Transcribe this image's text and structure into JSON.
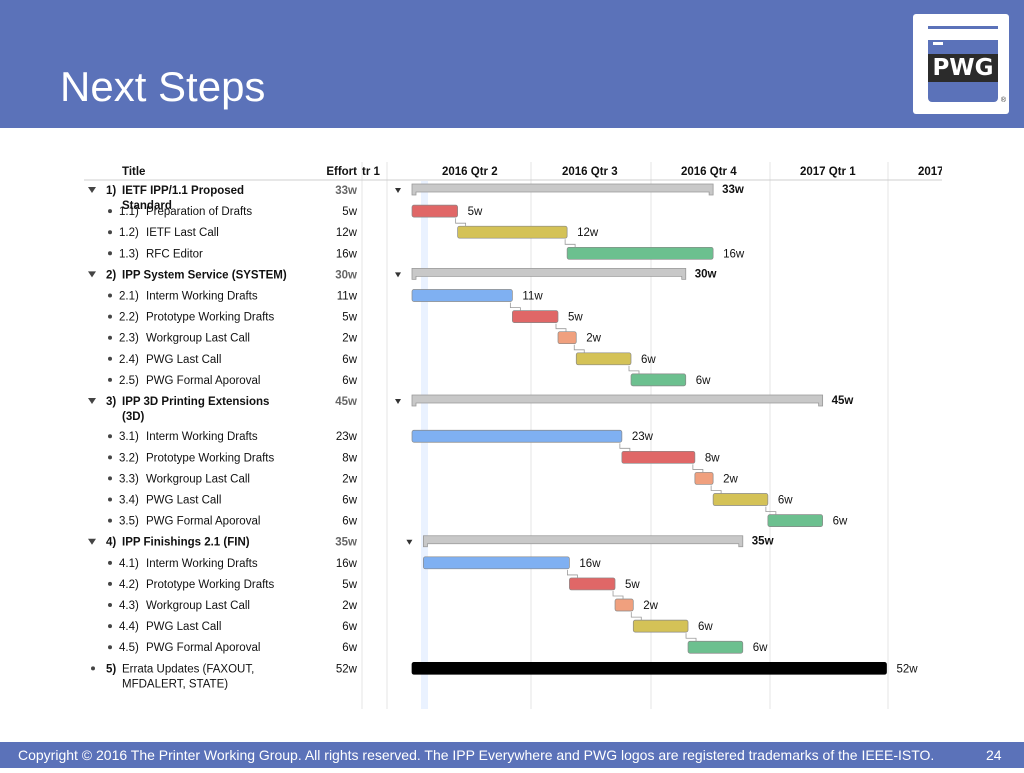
{
  "slide": {
    "title": "Next Steps",
    "logo_text": "PWG",
    "logo_mark": "®",
    "copyright": "Copyright © 2016 The Printer Working Group. All rights reserved. The IPP Everywhere and PWG logos are registered trademarks of the IEEE-ISTO.",
    "page_number": "24"
  },
  "colors": {
    "header": "#5b72b9",
    "summary": "#c8c8c8",
    "blue": "#7fb0f2",
    "red": "#e06767",
    "yellow": "#d4c257",
    "green": "#6cc08f",
    "orange": "#f0a07e",
    "black": "#000000"
  },
  "chart_data": {
    "type": "gantt",
    "columns": {
      "title": "Title",
      "effort": "Effort"
    },
    "quarters": [
      "tr 1",
      "2016 Qtr 2",
      "2016 Qtr 3",
      "2016 Qtr 4",
      "2017 Qtr 1",
      "2017"
    ],
    "tasks": [
      {
        "num": "1)",
        "name": [
          "IETF IPP/1.1 Proposed",
          "Standard"
        ],
        "effort": "33w",
        "summary": true,
        "start": 0,
        "weeks": 33,
        "color": "summary"
      },
      {
        "num": "1.1)",
        "name": [
          "Preparation of Drafts"
        ],
        "effort": "5w",
        "summary": false,
        "start": 0,
        "weeks": 5,
        "color": "red"
      },
      {
        "num": "1.2)",
        "name": [
          "IETF Last Call"
        ],
        "effort": "12w",
        "summary": false,
        "start": 5,
        "weeks": 12,
        "color": "yellow"
      },
      {
        "num": "1.3)",
        "name": [
          "RFC Editor"
        ],
        "effort": "16w",
        "summary": false,
        "start": 17,
        "weeks": 16,
        "color": "green"
      },
      {
        "num": "2)",
        "name": [
          "IPP System Service (SYSTEM)"
        ],
        "effort": "30w",
        "summary": true,
        "start": 0,
        "weeks": 30,
        "color": "summary"
      },
      {
        "num": "2.1)",
        "name": [
          "Interm Working Drafts"
        ],
        "effort": "11w",
        "summary": false,
        "start": 0,
        "weeks": 11,
        "color": "blue"
      },
      {
        "num": "2.2)",
        "name": [
          "Prototype Working Drafts"
        ],
        "effort": "5w",
        "summary": false,
        "start": 11,
        "weeks": 5,
        "color": "red"
      },
      {
        "num": "2.3)",
        "name": [
          "Workgroup Last Call"
        ],
        "effort": "2w",
        "summary": false,
        "start": 16,
        "weeks": 2,
        "color": "orange"
      },
      {
        "num": "2.4)",
        "name": [
          "PWG Last Call"
        ],
        "effort": "6w",
        "summary": false,
        "start": 18,
        "weeks": 6,
        "color": "yellow"
      },
      {
        "num": "2.5)",
        "name": [
          "PWG Formal Aporoval"
        ],
        "effort": "6w",
        "summary": false,
        "start": 24,
        "weeks": 6,
        "color": "green"
      },
      {
        "num": "3)",
        "name": [
          "IPP 3D Printing Extensions",
          "(3D)"
        ],
        "effort": "45w",
        "summary": true,
        "start": 0,
        "weeks": 45,
        "color": "summary"
      },
      {
        "num": "3.1)",
        "name": [
          "Interm Working Drafts"
        ],
        "effort": "23w",
        "summary": false,
        "start": 0,
        "weeks": 23,
        "color": "blue"
      },
      {
        "num": "3.2)",
        "name": [
          "Prototype Working Drafts"
        ],
        "effort": "8w",
        "summary": false,
        "start": 23,
        "weeks": 8,
        "color": "red"
      },
      {
        "num": "3.3)",
        "name": [
          "Workgroup Last Call"
        ],
        "effort": "2w",
        "summary": false,
        "start": 31,
        "weeks": 2,
        "color": "orange"
      },
      {
        "num": "3.4)",
        "name": [
          "PWG Last Call"
        ],
        "effort": "6w",
        "summary": false,
        "start": 33,
        "weeks": 6,
        "color": "yellow"
      },
      {
        "num": "3.5)",
        "name": [
          "PWG Formal Aporoval"
        ],
        "effort": "6w",
        "summary": false,
        "start": 39,
        "weeks": 6,
        "color": "green"
      },
      {
        "num": "4)",
        "name": [
          "IPP Finishings 2.1 (FIN)"
        ],
        "effort": "35w",
        "summary": true,
        "start": 1.25,
        "weeks": 35,
        "color": "summary"
      },
      {
        "num": "4.1)",
        "name": [
          "Interm Working Drafts"
        ],
        "effort": "16w",
        "summary": false,
        "start": 1.25,
        "weeks": 16,
        "color": "blue"
      },
      {
        "num": "4.2)",
        "name": [
          "Prototype Working Drafts"
        ],
        "effort": "5w",
        "summary": false,
        "start": 17.25,
        "weeks": 5,
        "color": "red"
      },
      {
        "num": "4.3)",
        "name": [
          "Workgroup Last Call"
        ],
        "effort": "2w",
        "summary": false,
        "start": 22.25,
        "weeks": 2,
        "color": "orange"
      },
      {
        "num": "4.4)",
        "name": [
          "PWG Last Call"
        ],
        "effort": "6w",
        "summary": false,
        "start": 24.25,
        "weeks": 6,
        "color": "yellow"
      },
      {
        "num": "4.5)",
        "name": [
          "PWG Formal Aporoval"
        ],
        "effort": "6w",
        "summary": false,
        "start": 30.25,
        "weeks": 6,
        "color": "green"
      },
      {
        "num": "5)",
        "name": [
          "Errata Updates (FAXOUT,",
          "MFDALERT, STATE)"
        ],
        "effort": "52w",
        "summary": false,
        "start": 0,
        "weeks": 52,
        "color": "black"
      }
    ]
  }
}
